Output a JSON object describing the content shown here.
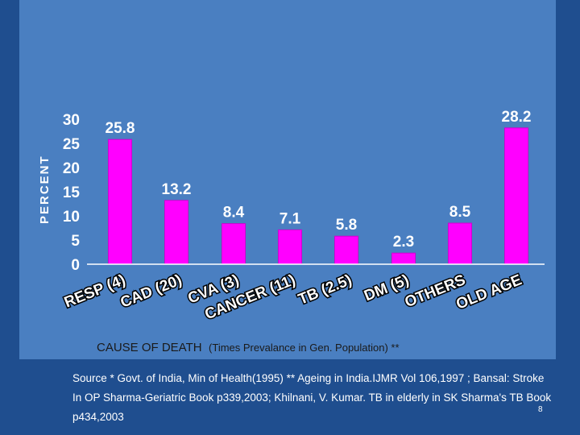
{
  "chart_data": {
    "type": "bar",
    "categories": [
      "RESP (4)",
      "CAD (20)",
      "CVA (3)",
      "CANCER (11)",
      "TB (2.5)",
      "DM (5)",
      "OTHERS",
      "OLD AGE"
    ],
    "values": [
      25.8,
      13.2,
      8.4,
      7.1,
      5.8,
      2.3,
      8.5,
      28.2
    ],
    "value_labels": [
      "25.8",
      "13.2",
      "8.4",
      "7.1",
      "5.8",
      "2.3",
      "8.5",
      "28.2"
    ],
    "title": "CAUSE OF DEATH",
    "title_note": "(Times Prevalance in Gen. Population) **",
    "ylabel": "PERCENT",
    "xlabel": "",
    "ylim": [
      0,
      30
    ],
    "yticks": [
      "0",
      "5",
      "10",
      "15",
      "20",
      "25",
      "30"
    ],
    "colors": {
      "bar": "#ff00ff",
      "background": "#4a7fc1"
    },
    "grid": false,
    "legend": "none"
  },
  "footer": {
    "source": "Source * Govt. of India, Min of Health(1995) ** Ageing in India.IJMR Vol 106,1997 ; Bansal: Stroke In OP Sharma-Geriatric Book p339,2003; Khilnani, V. Kumar. TB in elderly in SK Sharma's TB  Book p434,2003",
    "page_number": "8"
  }
}
